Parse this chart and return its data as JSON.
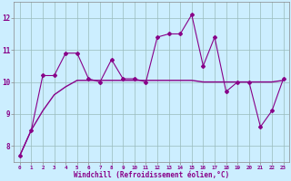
{
  "xlabel": "Windchill (Refroidissement éolien,°C)",
  "bg_color": "#cceeff",
  "line_color": "#880088",
  "grid_color": "#99bbbb",
  "x_jagged": [
    0,
    1,
    2,
    3,
    4,
    5,
    6,
    7,
    8,
    9,
    10,
    11,
    12,
    13,
    14,
    15,
    16,
    17,
    18,
    19,
    20,
    21,
    22,
    23
  ],
  "y_jagged": [
    7.7,
    8.5,
    10.2,
    10.2,
    10.9,
    10.9,
    10.1,
    10.0,
    10.7,
    10.1,
    10.1,
    10.0,
    11.4,
    11.5,
    11.5,
    12.1,
    10.5,
    11.4,
    9.7,
    10.0,
    10.0,
    8.6,
    9.1,
    10.1
  ],
  "x_smooth": [
    0,
    1,
    2,
    3,
    4,
    5,
    6,
    7,
    8,
    9,
    10,
    11,
    12,
    13,
    14,
    15,
    16,
    17,
    18,
    19,
    20,
    21,
    22,
    23
  ],
  "y_smooth": [
    7.7,
    8.5,
    9.1,
    9.6,
    9.85,
    10.05,
    10.05,
    10.05,
    10.05,
    10.05,
    10.05,
    10.05,
    10.05,
    10.05,
    10.05,
    10.05,
    10.0,
    10.0,
    10.0,
    10.0,
    10.0,
    10.0,
    10.0,
    10.05
  ],
  "ylim": [
    7.5,
    12.5
  ],
  "yticks": [
    8,
    9,
    10,
    11,
    12
  ],
  "xticks": [
    0,
    1,
    2,
    3,
    4,
    5,
    6,
    7,
    8,
    9,
    10,
    11,
    12,
    13,
    14,
    15,
    16,
    17,
    18,
    19,
    20,
    21,
    22,
    23
  ]
}
